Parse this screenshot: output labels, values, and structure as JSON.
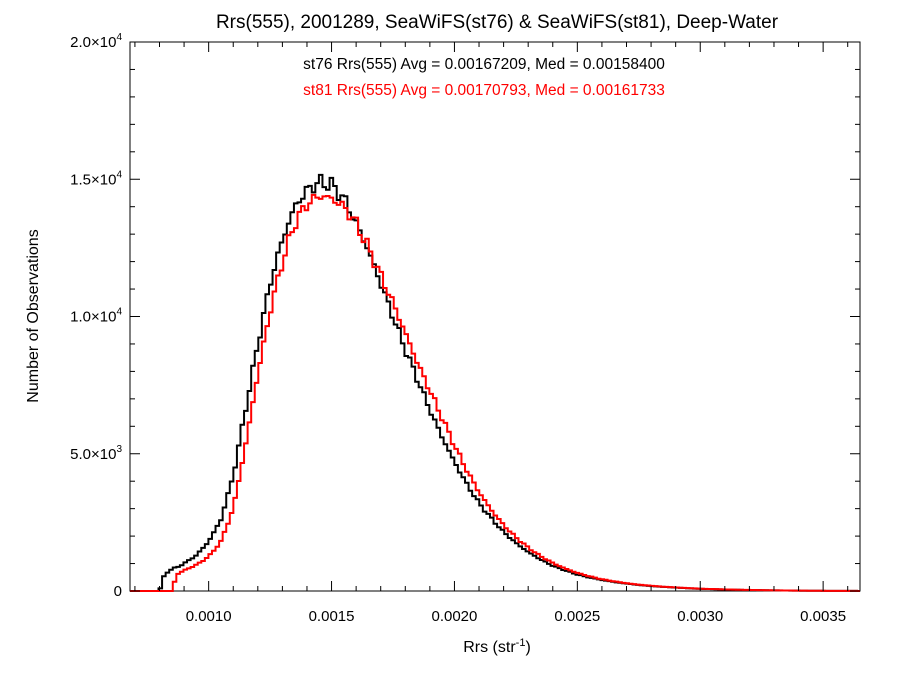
{
  "chart_data": {
    "type": "line",
    "title": "Rrs(555), 2001289, SeaWiFS(st76) & SeaWiFS(st81), Deep-Water",
    "xlabel_base": "Rrs (str",
    "xlabel_sup": "-1",
    "xlabel_close": ")",
    "ylabel": "Number of Observations",
    "xlim": [
      0.00068,
      0.00365
    ],
    "ylim": [
      0,
      20000
    ],
    "x_ticks": [
      {
        "value": 0.001,
        "label": "0.0010"
      },
      {
        "value": 0.0015,
        "label": "0.0015"
      },
      {
        "value": 0.002,
        "label": "0.0020"
      },
      {
        "value": 0.0025,
        "label": "0.0025"
      },
      {
        "value": 0.003,
        "label": "0.0030"
      },
      {
        "value": 0.0035,
        "label": "0.0035"
      }
    ],
    "y_ticks": [
      {
        "value": 0,
        "mant": "0",
        "exp": ""
      },
      {
        "value": 5000,
        "mant": "5.0×10",
        "exp": "3"
      },
      {
        "value": 10000,
        "mant": "1.0×10",
        "exp": "4"
      },
      {
        "value": 15000,
        "mant": "1.5×10",
        "exp": "4"
      },
      {
        "value": 20000,
        "mant": "2.0×10",
        "exp": "4"
      }
    ],
    "annotations": [
      {
        "text": "st76 Rrs(555) Avg = 0.00167209, Med = 0.00158400",
        "color": "#000000"
      },
      {
        "text": "st81 Rrs(555) Avg = 0.00170793, Med = 0.00161733",
        "color": "#ff0000"
      }
    ],
    "series": [
      {
        "name": "st76",
        "color": "#000000",
        "points": [
          [
            0.00068,
            0
          ],
          [
            0.0008,
            0
          ],
          [
            0.00082,
            600
          ],
          [
            0.00085,
            800
          ],
          [
            0.00088,
            900
          ],
          [
            0.0009,
            1000
          ],
          [
            0.00095,
            1300
          ],
          [
            0.001,
            1800
          ],
          [
            0.00105,
            2600
          ],
          [
            0.0011,
            4200
          ],
          [
            0.00115,
            6600
          ],
          [
            0.0012,
            9000
          ],
          [
            0.00125,
            11200
          ],
          [
            0.0013,
            12800
          ],
          [
            0.00135,
            14000
          ],
          [
            0.0014,
            14600
          ],
          [
            0.00145,
            14900
          ],
          [
            0.0015,
            14800
          ],
          [
            0.00155,
            14300
          ],
          [
            0.0016,
            13400
          ],
          [
            0.00165,
            12400
          ],
          [
            0.0017,
            11200
          ],
          [
            0.00175,
            10000
          ],
          [
            0.0018,
            8800
          ],
          [
            0.00185,
            7700
          ],
          [
            0.0019,
            6600
          ],
          [
            0.00195,
            5600
          ],
          [
            0.002,
            4700
          ],
          [
            0.00205,
            3900
          ],
          [
            0.0021,
            3200
          ],
          [
            0.00215,
            2650
          ],
          [
            0.0022,
            2150
          ],
          [
            0.00225,
            1750
          ],
          [
            0.0023,
            1420
          ],
          [
            0.00235,
            1150
          ],
          [
            0.0024,
            920
          ],
          [
            0.00245,
            750
          ],
          [
            0.0025,
            600
          ],
          [
            0.00255,
            490
          ],
          [
            0.0026,
            400
          ],
          [
            0.00265,
            330
          ],
          [
            0.0027,
            270
          ],
          [
            0.00275,
            220
          ],
          [
            0.0028,
            180
          ],
          [
            0.00285,
            150
          ],
          [
            0.0029,
            125
          ],
          [
            0.00295,
            100
          ],
          [
            0.003,
            80
          ],
          [
            0.0031,
            55
          ],
          [
            0.0032,
            35
          ],
          [
            0.0033,
            22
          ],
          [
            0.0034,
            12
          ],
          [
            0.0035,
            6
          ],
          [
            0.0036,
            3
          ],
          [
            0.00365,
            2
          ]
        ]
      },
      {
        "name": "st81",
        "color": "#ff0000",
        "points": [
          [
            0.00068,
            0
          ],
          [
            0.00085,
            0
          ],
          [
            0.00087,
            600
          ],
          [
            0.0009,
            750
          ],
          [
            0.00095,
            950
          ],
          [
            0.001,
            1250
          ],
          [
            0.00105,
            1800
          ],
          [
            0.0011,
            3000
          ],
          [
            0.00115,
            5300
          ],
          [
            0.0012,
            7900
          ],
          [
            0.00125,
            10200
          ],
          [
            0.0013,
            12000
          ],
          [
            0.00135,
            13400
          ],
          [
            0.0014,
            14100
          ],
          [
            0.00145,
            14400
          ],
          [
            0.0015,
            14300
          ],
          [
            0.00155,
            14000
          ],
          [
            0.0016,
            13400
          ],
          [
            0.00165,
            12500
          ],
          [
            0.0017,
            11500
          ],
          [
            0.00175,
            10500
          ],
          [
            0.0018,
            9400
          ],
          [
            0.00185,
            8300
          ],
          [
            0.0019,
            7300
          ],
          [
            0.00195,
            6300
          ],
          [
            0.002,
            5300
          ],
          [
            0.00205,
            4400
          ],
          [
            0.0021,
            3600
          ],
          [
            0.00215,
            2950
          ],
          [
            0.0022,
            2400
          ],
          [
            0.00225,
            1950
          ],
          [
            0.0023,
            1580
          ],
          [
            0.00235,
            1270
          ],
          [
            0.0024,
            1020
          ],
          [
            0.00245,
            820
          ],
          [
            0.0025,
            660
          ],
          [
            0.00255,
            530
          ],
          [
            0.0026,
            430
          ],
          [
            0.00265,
            350
          ],
          [
            0.0027,
            285
          ],
          [
            0.00275,
            230
          ],
          [
            0.0028,
            190
          ],
          [
            0.00285,
            155
          ],
          [
            0.0029,
            130
          ],
          [
            0.00295,
            105
          ],
          [
            0.003,
            85
          ],
          [
            0.0031,
            58
          ],
          [
            0.0032,
            38
          ],
          [
            0.0033,
            24
          ],
          [
            0.0034,
            14
          ],
          [
            0.0035,
            7
          ],
          [
            0.0036,
            4
          ],
          [
            0.00365,
            2
          ]
        ]
      }
    ],
    "grid": false,
    "legend": "none"
  }
}
